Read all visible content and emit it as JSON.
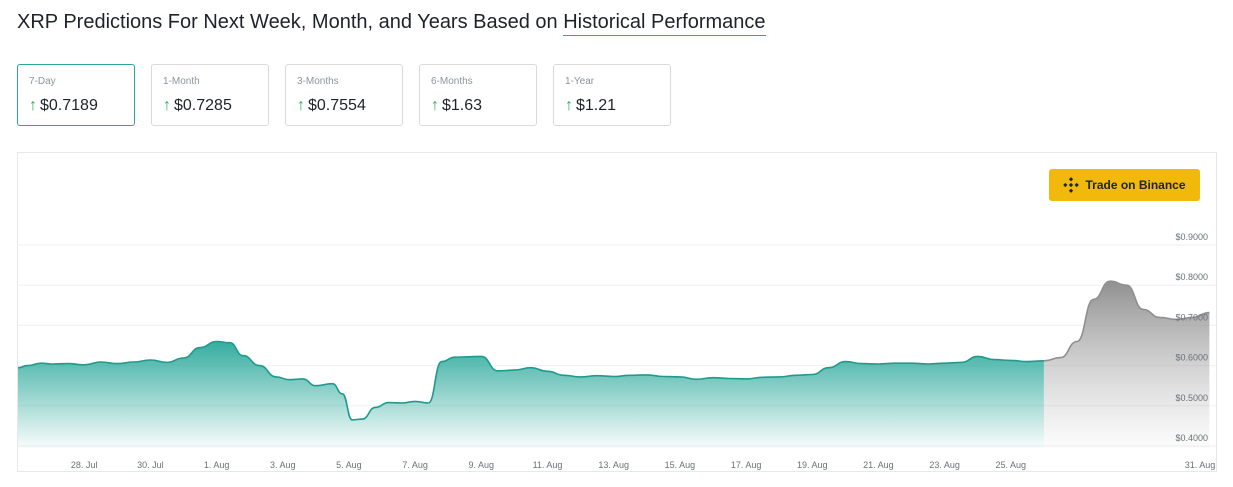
{
  "header": {
    "title_prefix": "XRP Predictions For Next Week, Month, and Years Based on ",
    "title_link": "Historical Performance"
  },
  "cards": [
    {
      "label": "7-Day",
      "value": "$0.7189",
      "trend": "up"
    },
    {
      "label": "1-Month",
      "value": "$0.7285",
      "trend": "up"
    },
    {
      "label": "3-Months",
      "value": "$0.7554",
      "trend": "up"
    },
    {
      "label": "6-Months",
      "value": "$1.63",
      "trend": "up"
    },
    {
      "label": "1-Year",
      "value": "$1.21",
      "trend": "up"
    }
  ],
  "trade_button": {
    "label": "Trade on Binance",
    "icon": "binance-logo-icon"
  },
  "colors": {
    "accent": "#2aa89a",
    "up_arrow": "#2eae5e",
    "binance_yellow": "#f0b90b",
    "prediction_gray": "#a6a6a6"
  },
  "chart_data": {
    "type": "area",
    "xlabel": "",
    "ylabel": "",
    "x_tick_labels": [
      "28. Jul",
      "30. Jul",
      "1. Aug",
      "3. Aug",
      "5. Aug",
      "7. Aug",
      "9. Aug",
      "11. Aug",
      "13. Aug",
      "15. Aug",
      "17. Aug",
      "19. Aug",
      "21. Aug",
      "23. Aug",
      "25. Aug",
      "31. Aug"
    ],
    "y_tick_labels": [
      "$0.4000",
      "$0.5000",
      "$0.6000",
      "$0.7000",
      "$0.8000",
      "$0.9000"
    ],
    "ylim": [
      0.37,
      0.9
    ],
    "grid": true,
    "y_axis_position": "right",
    "series": [
      {
        "kind": "historical",
        "points": [
          [
            "26. Jul",
            0.575
          ],
          [
            "26.3 Jul",
            0.58
          ],
          [
            "26.7 Jul",
            0.586
          ],
          [
            "27. Jul",
            0.584
          ],
          [
            "27.5 Jul",
            0.585
          ],
          [
            "28. Jul",
            0.582
          ],
          [
            "28.5 Jul",
            0.589
          ],
          [
            "29. Jul",
            0.585
          ],
          [
            "29.5 Jul",
            0.589
          ],
          [
            "30. Jul",
            0.594
          ],
          [
            "30.5 Jul",
            0.588
          ],
          [
            "31. Jul",
            0.599
          ],
          [
            "31.5 Jul",
            0.625
          ],
          [
            "1. Aug",
            0.64
          ],
          [
            "1.4 Aug",
            0.637
          ],
          [
            "1.8 Aug",
            0.605
          ],
          [
            "2.3 Aug",
            0.58
          ],
          [
            "2.8 Aug",
            0.552
          ],
          [
            "3.2 Aug",
            0.545
          ],
          [
            "3.6 Aug",
            0.547
          ],
          [
            "4. Aug",
            0.53
          ],
          [
            "4.5 Aug",
            0.535
          ],
          [
            "4.8 Aug",
            0.51
          ],
          [
            "5.1 Aug",
            0.445
          ],
          [
            "5.4 Aug",
            0.447
          ],
          [
            "5.8 Aug",
            0.476
          ],
          [
            "6.2 Aug",
            0.488
          ],
          [
            "6.6 Aug",
            0.487
          ],
          [
            "7. Aug",
            0.491
          ],
          [
            "7.4 Aug",
            0.487
          ],
          [
            "7.8 Aug",
            0.59
          ],
          [
            "8.2 Aug",
            0.601
          ],
          [
            "8.6 Aug",
            0.602
          ],
          [
            "9. Aug",
            0.603
          ],
          [
            "9.5 Aug",
            0.567
          ],
          [
            "10. Aug",
            0.569
          ],
          [
            "10.5 Aug",
            0.575
          ],
          [
            "11. Aug",
            0.566
          ],
          [
            "11.5 Aug",
            0.556
          ],
          [
            "12. Aug",
            0.552
          ],
          [
            "12.5 Aug",
            0.555
          ],
          [
            "13. Aug",
            0.553
          ],
          [
            "13.5 Aug",
            0.556
          ],
          [
            "14. Aug",
            0.557
          ],
          [
            "14.5 Aug",
            0.553
          ],
          [
            "15. Aug",
            0.552
          ],
          [
            "15.5 Aug",
            0.546
          ],
          [
            "16. Aug",
            0.55
          ],
          [
            "16.5 Aug",
            0.548
          ],
          [
            "17. Aug",
            0.547
          ],
          [
            "17.5 Aug",
            0.551
          ],
          [
            "18. Aug",
            0.552
          ],
          [
            "18.5 Aug",
            0.556
          ],
          [
            "19. Aug",
            0.558
          ],
          [
            "19.5 Aug",
            0.575
          ],
          [
            "20. Aug",
            0.59
          ],
          [
            "20.5 Aug",
            0.585
          ],
          [
            "21. Aug",
            0.584
          ],
          [
            "21.5 Aug",
            0.586
          ],
          [
            "22. Aug",
            0.586
          ],
          [
            "22.5 Aug",
            0.584
          ],
          [
            "23. Aug",
            0.586
          ],
          [
            "23.5 Aug",
            0.588
          ],
          [
            "24. Aug",
            0.603
          ],
          [
            "24.5 Aug",
            0.595
          ],
          [
            "25. Aug",
            0.593
          ],
          [
            "25.5 Aug",
            0.59
          ],
          [
            "26. Aug",
            0.592
          ]
        ]
      },
      {
        "kind": "prediction",
        "points": [
          [
            "26. Aug",
            0.592
          ],
          [
            "26.5 Aug",
            0.6
          ],
          [
            "27. Aug",
            0.64
          ],
          [
            "27.5 Aug",
            0.745
          ],
          [
            "28. Aug",
            0.79
          ],
          [
            "28.5 Aug",
            0.78
          ],
          [
            "29. Aug",
            0.72
          ],
          [
            "29.5 Aug",
            0.7
          ],
          [
            "30. Aug",
            0.695
          ],
          [
            "30.5 Aug",
            0.7
          ],
          [
            "31. Aug",
            0.712
          ]
        ]
      }
    ]
  }
}
